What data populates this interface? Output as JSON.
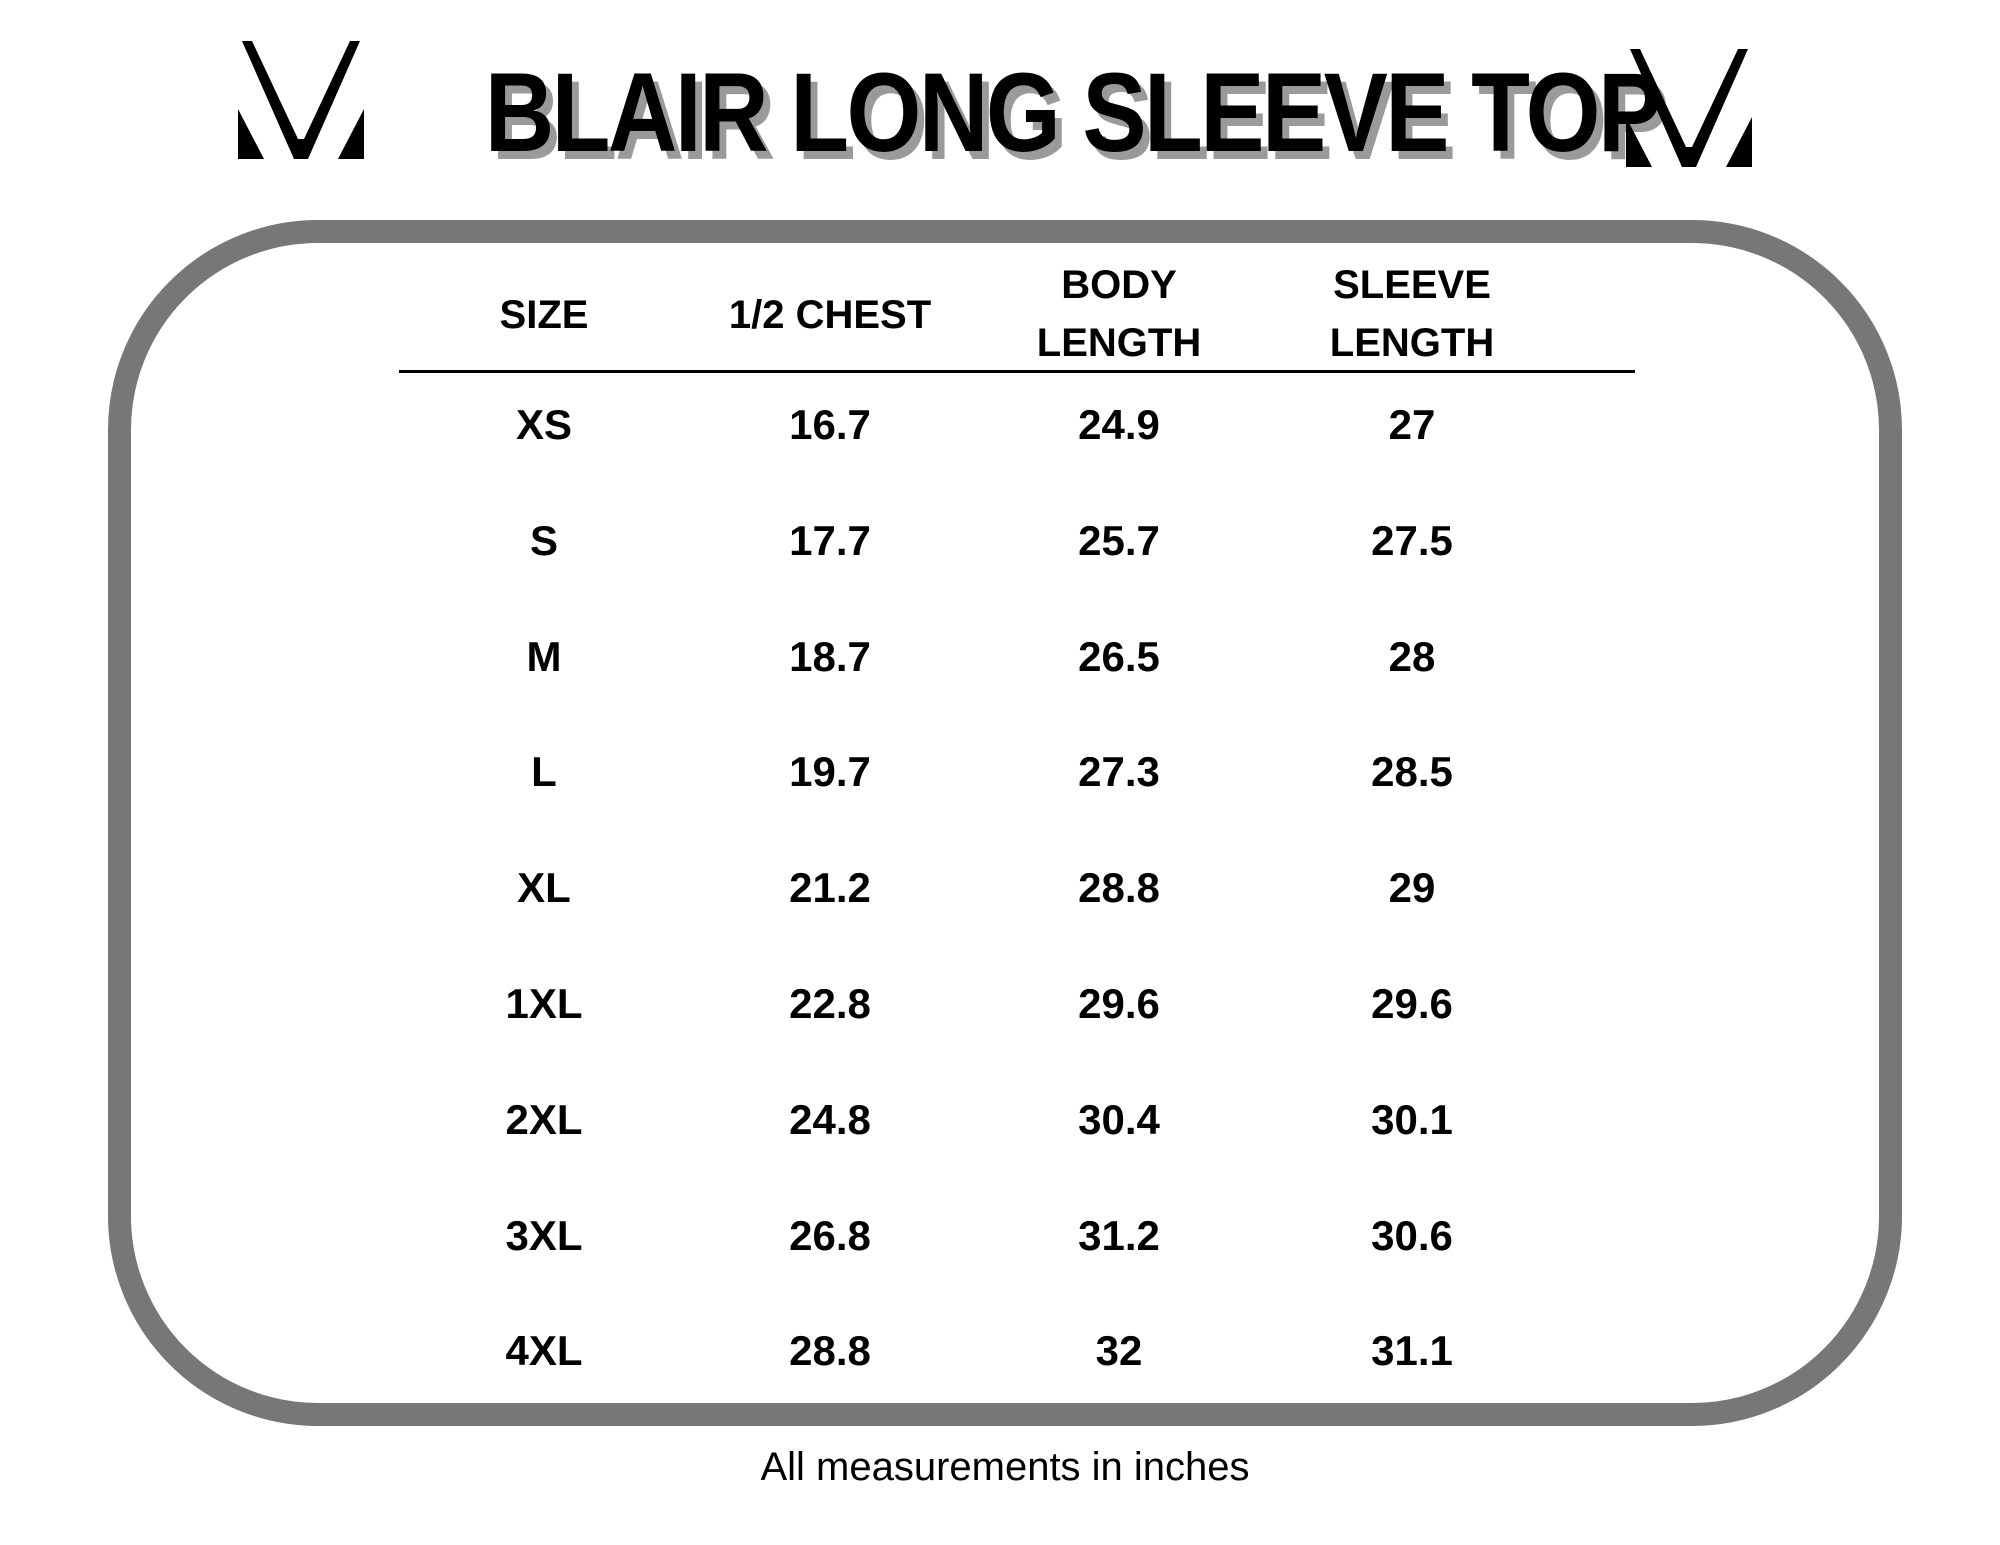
{
  "title": "BLAIR LONG SLEEVE TOP",
  "logo_icon": "brand-v-logo",
  "table": {
    "headers": [
      {
        "line1": "SIZE",
        "line2": ""
      },
      {
        "line1": "1/2 CHEST",
        "line2": ""
      },
      {
        "line1": "BODY",
        "line2": "LENGTH"
      },
      {
        "line1": "SLEEVE",
        "line2": "LENGTH"
      }
    ],
    "rows": [
      [
        "XS",
        "16.7",
        "24.9",
        "27"
      ],
      [
        "S",
        "17.7",
        "25.7",
        "27.5"
      ],
      [
        "M",
        "18.7",
        "26.5",
        "28"
      ],
      [
        "L",
        "19.7",
        "27.3",
        "28.5"
      ],
      [
        "XL",
        "21.2",
        "28.8",
        "29"
      ],
      [
        "1XL",
        "22.8",
        "29.6",
        "29.6"
      ],
      [
        "2XL",
        "24.8",
        "30.4",
        "30.1"
      ],
      [
        "3XL",
        "26.8",
        "31.2",
        "30.6"
      ],
      [
        "4XL",
        "28.8",
        "32",
        "31.1"
      ]
    ]
  },
  "footer": "All measurements in inches",
  "colors": {
    "border": "#777777",
    "shadow": "#9a9a9a",
    "text": "#000000"
  }
}
